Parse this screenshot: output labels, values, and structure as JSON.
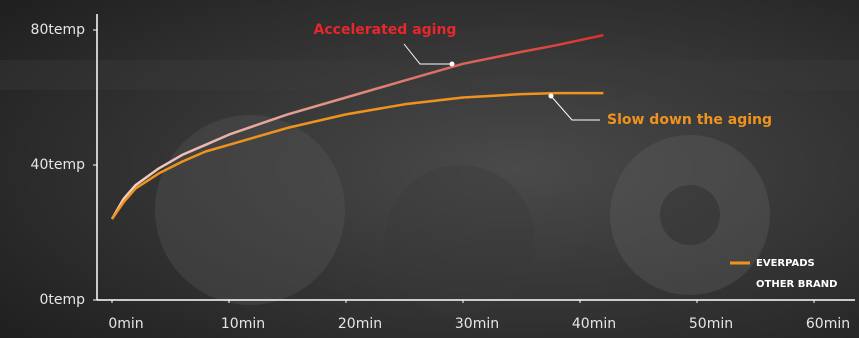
{
  "chart_data": {
    "type": "line",
    "x": [
      0,
      1,
      2,
      4,
      6,
      8,
      10,
      15,
      20,
      25,
      30,
      35,
      38,
      42
    ],
    "series": [
      {
        "name": "EVERPADS",
        "color": "#f0931e",
        "values": [
          24,
          29,
          33,
          37.5,
          41,
          44,
          46,
          51,
          55,
          58,
          60,
          61,
          61.3,
          61.3
        ]
      },
      {
        "name": "OTHER BRAND",
        "color": "#d8322e",
        "values": [
          24,
          30,
          34,
          39,
          43,
          46,
          49,
          55,
          60,
          65,
          70,
          73.5,
          75.5,
          78.5
        ]
      }
    ],
    "xlim": [
      0,
      60
    ],
    "xticks": [
      {
        "value": 0,
        "label": "0min"
      },
      {
        "value": 10,
        "label": "10min"
      },
      {
        "value": 20,
        "label": "20min"
      },
      {
        "value": 30,
        "label": "30min"
      },
      {
        "value": 40,
        "label": "40min"
      },
      {
        "value": 50,
        "label": "50min"
      },
      {
        "value": 60,
        "label": "60min"
      }
    ],
    "ylim": [
      0,
      80
    ],
    "yticks": [
      {
        "value": 0,
        "label": "0temp"
      },
      {
        "value": 40,
        "label": "40temp"
      },
      {
        "value": 80,
        "label": "80temp"
      }
    ],
    "annotations": [
      {
        "text": "Accelerated aging",
        "color": "#e8262b"
      },
      {
        "text": "Slow down the aging",
        "color": "#f0931e"
      }
    ],
    "legend": "bottom-right"
  }
}
